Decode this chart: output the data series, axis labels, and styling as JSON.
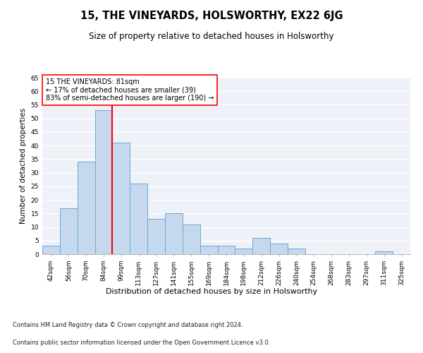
{
  "title": "15, THE VINEYARDS, HOLSWORTHY, EX22 6JG",
  "subtitle": "Size of property relative to detached houses in Holsworthy",
  "xlabel": "Distribution of detached houses by size in Holsworthy",
  "ylabel": "Number of detached properties",
  "categories": [
    "42sqm",
    "56sqm",
    "70sqm",
    "84sqm",
    "99sqm",
    "113sqm",
    "127sqm",
    "141sqm",
    "155sqm",
    "169sqm",
    "184sqm",
    "198sqm",
    "212sqm",
    "226sqm",
    "240sqm",
    "254sqm",
    "268sqm",
    "283sqm",
    "297sqm",
    "311sqm",
    "325sqm"
  ],
  "values": [
    3,
    17,
    34,
    53,
    41,
    26,
    13,
    15,
    11,
    3,
    3,
    2,
    6,
    4,
    2,
    0,
    0,
    0,
    0,
    1,
    0
  ],
  "bar_color": "#c5d8ed",
  "bar_edge_color": "#6aaad4",
  "vline_x": 3.5,
  "vline_color": "red",
  "annotation_text": "15 THE VINEYARDS: 81sqm\n← 17% of detached houses are smaller (39)\n83% of semi-detached houses are larger (190) →",
  "annotation_box_color": "white",
  "annotation_box_edge_color": "red",
  "ylim": [
    0,
    65
  ],
  "yticks": [
    0,
    5,
    10,
    15,
    20,
    25,
    30,
    35,
    40,
    45,
    50,
    55,
    60,
    65
  ],
  "footnote1": "Contains HM Land Registry data © Crown copyright and database right 2024.",
  "footnote2": "Contains public sector information licensed under the Open Government Licence v3.0.",
  "title_fontsize": 10.5,
  "subtitle_fontsize": 8.5,
  "xlabel_fontsize": 8,
  "ylabel_fontsize": 7.5,
  "tick_fontsize": 6.5,
  "annotation_fontsize": 7,
  "footnote_fontsize": 6,
  "background_color": "#eef2f8"
}
